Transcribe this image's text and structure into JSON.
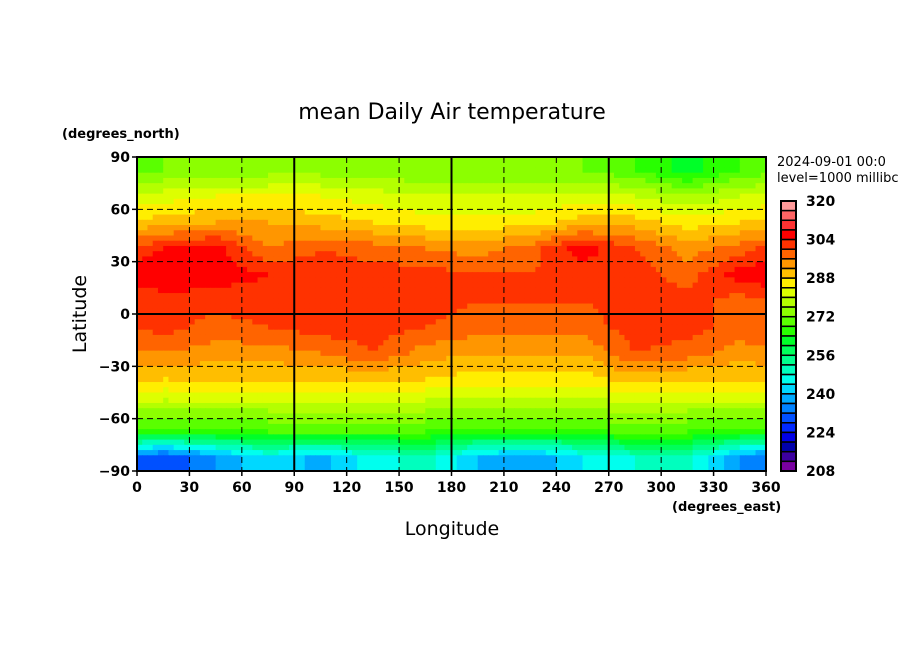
{
  "chart_data": {
    "type": "heatmap",
    "title": "mean Daily Air temperature",
    "xlabel": "Longitude",
    "ylabel": "Latitude",
    "x_units": "(degrees_east)",
    "y_units": "(degrees_north)",
    "date_label": "2024-09-01 00:0",
    "level_label": "level=1000 millibc",
    "xlim": [
      0,
      360
    ],
    "ylim": [
      -90,
      90
    ],
    "x_ticks": [
      "0",
      "30",
      "60",
      "90",
      "120",
      "150",
      "180",
      "210",
      "240",
      "270",
      "300",
      "330",
      "360"
    ],
    "y_ticks": [
      "90",
      "60",
      "30",
      "0",
      "-30",
      "-60",
      "-90"
    ],
    "grid": "dashed every 30 degrees; solid at 90, 180, 270 lon and equator",
    "colorbar": {
      "min": 208,
      "max": 320,
      "step": 4,
      "tick_labels": [
        "320",
        "304",
        "288",
        "272",
        "256",
        "240",
        "224",
        "208"
      ],
      "colors": [
        "#ff9a9a",
        "#ff6464",
        "#ff3232",
        "#ff0000",
        "#ff3200",
        "#ff6400",
        "#ff9600",
        "#ffbe00",
        "#ffee00",
        "#ddff00",
        "#b4ff00",
        "#8cff00",
        "#5aff00",
        "#28ff00",
        "#00ff28",
        "#00ff5a",
        "#00ff8c",
        "#00ffbe",
        "#00ffee",
        "#00d8ff",
        "#00aaff",
        "#0082ff",
        "#0050ff",
        "#0028ff",
        "#0000e6",
        "#0000aa",
        "#3c00a0",
        "#7800a0"
      ]
    },
    "lon_centers": [
      15,
      45,
      75,
      105,
      135,
      165,
      195,
      225,
      255,
      285,
      315,
      345
    ],
    "lat_centers": [
      82.5,
      67.5,
      52.5,
      37.5,
      22.5,
      7.5,
      -7.5,
      -22.5,
      -37.5,
      -52.5,
      -67.5,
      -82.5
    ],
    "values_K": [
      [
        272,
        272,
        274,
        274,
        274,
        272,
        272,
        272,
        272,
        268,
        262,
        268
      ],
      [
        282,
        284,
        284,
        284,
        282,
        280,
        280,
        280,
        282,
        280,
        276,
        280
      ],
      [
        290,
        292,
        292,
        290,
        288,
        286,
        286,
        286,
        290,
        290,
        286,
        288
      ],
      [
        304,
        306,
        296,
        300,
        298,
        296,
        294,
        298,
        306,
        300,
        294,
        298
      ],
      [
        308,
        306,
        304,
        302,
        302,
        302,
        300,
        300,
        302,
        302,
        298,
        306
      ],
      [
        302,
        302,
        302,
        302,
        302,
        302,
        300,
        300,
        300,
        302,
        302,
        298
      ],
      [
        302,
        298,
        300,
        302,
        302,
        300,
        298,
        298,
        298,
        302,
        302,
        298
      ],
      [
        296,
        294,
        294,
        296,
        300,
        294,
        292,
        292,
        292,
        300,
        298,
        294
      ],
      [
        288,
        288,
        288,
        288,
        288,
        288,
        286,
        286,
        286,
        290,
        288,
        288
      ],
      [
        278,
        278,
        278,
        278,
        278,
        278,
        278,
        278,
        278,
        278,
        278,
        278
      ],
      [
        266,
        266,
        268,
        268,
        268,
        268,
        266,
        266,
        266,
        270,
        268,
        266
      ],
      [
        228,
        236,
        244,
        238,
        246,
        250,
        240,
        236,
        244,
        248,
        250,
        236
      ]
    ]
  }
}
